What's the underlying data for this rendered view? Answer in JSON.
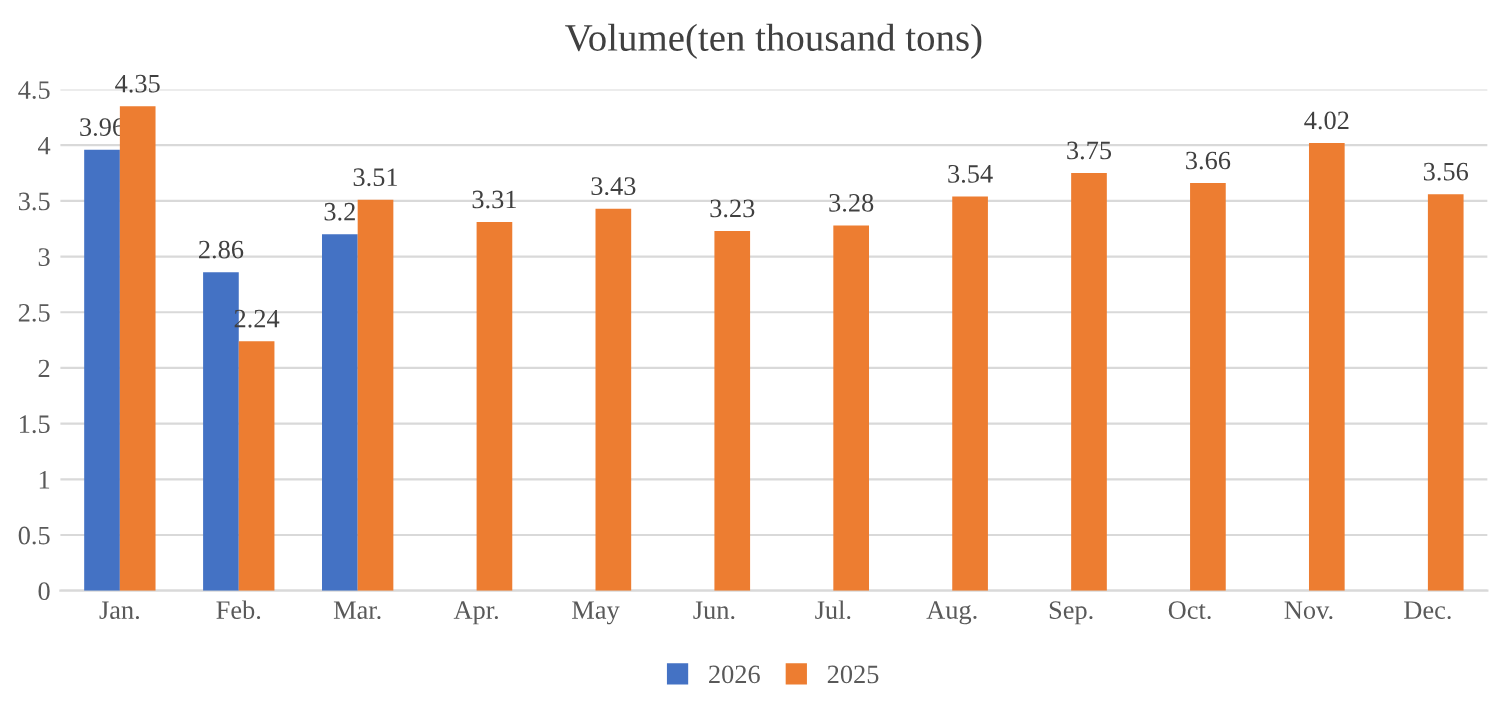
{
  "chart_data": {
    "type": "bar",
    "title": "Volume(ten thousand tons)",
    "categories": [
      "Jan.",
      "Feb.",
      "Mar.",
      "Apr.",
      "May",
      "Jun.",
      "Jul.",
      "Aug.",
      "Sep.",
      "Oct.",
      "Nov.",
      "Dec."
    ],
    "series": [
      {
        "name": "2026",
        "color": "#4472c4",
        "values": [
          3.96,
          2.86,
          3.2,
          null,
          null,
          null,
          null,
          null,
          null,
          null,
          null,
          null
        ]
      },
      {
        "name": "2025",
        "color": "#ed7d31",
        "values": [
          4.35,
          2.24,
          3.51,
          3.31,
          3.43,
          3.23,
          3.28,
          3.54,
          3.75,
          3.66,
          4.02,
          3.56
        ]
      }
    ],
    "ylim": [
      0,
      4.5
    ],
    "yticks": [
      0,
      0.5,
      1,
      1.5,
      2,
      2.5,
      3,
      3.5,
      4,
      4.5
    ],
    "grid": "y",
    "legend": "bottom",
    "data_labels": true
  }
}
